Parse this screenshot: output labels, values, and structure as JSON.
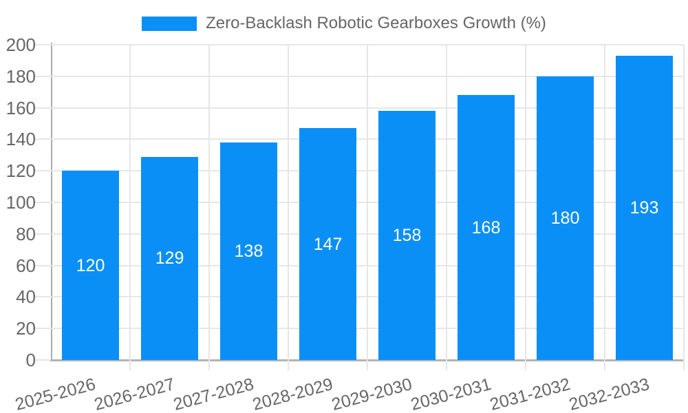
{
  "chart_data": {
    "type": "bar",
    "title": "Zero-Backlash Robotic Gearboxes Growth (%)",
    "categories": [
      "2025-2026",
      "2026-2027",
      "2027-2028",
      "2028-2029",
      "2029-2030",
      "2030-2031",
      "2031-2032",
      "2032-2033"
    ],
    "values": [
      120,
      129,
      138,
      147,
      158,
      168,
      180,
      193
    ],
    "xlabel": "",
    "ylabel": "",
    "ylim": [
      0,
      200
    ],
    "yticks": [
      0,
      20,
      40,
      60,
      80,
      100,
      120,
      140,
      160,
      180,
      200
    ],
    "grid": true,
    "legend_position": "top-center",
    "x_label_rotation_deg": -15,
    "colors": {
      "bar": "#0a8ff7",
      "bar_label": "#ffffff",
      "grid": "#e6e6e6",
      "axis": "#b0b0b0",
      "text": "#666666",
      "background": "#ffffff"
    }
  }
}
